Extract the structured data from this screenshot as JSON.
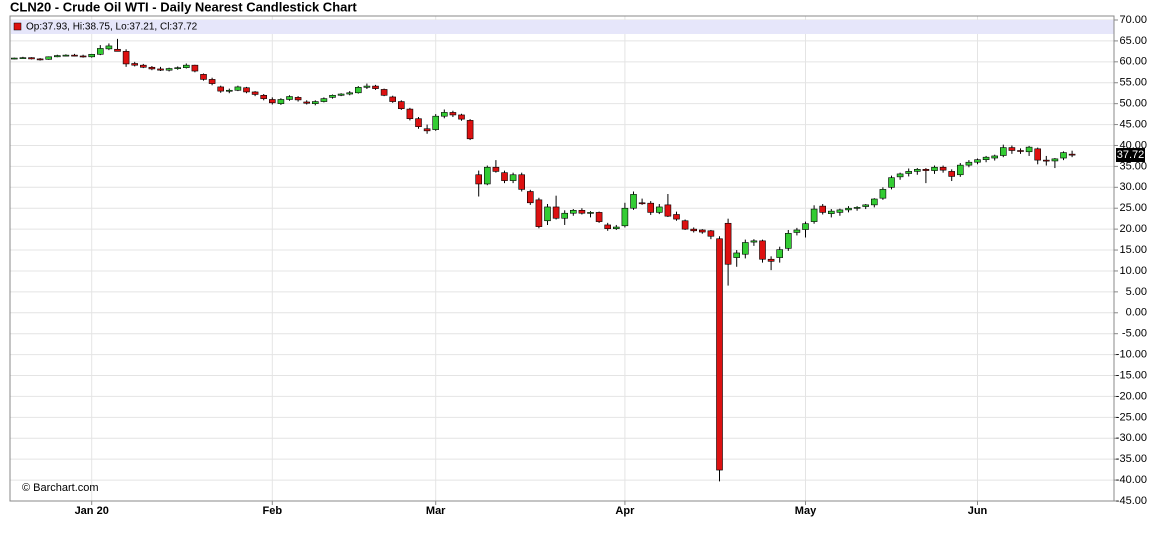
{
  "chart_data": {
    "type": "candlestick",
    "title": "CLN20 - Crude Oil WTI - Daily Nearest Candlestick Chart",
    "legend_text": "Op:37.93, Hi:38.75, Lo:37.21, Cl:37.72",
    "last_label": "37.72",
    "credit": "© Barchart.com",
    "up_color": "#33cc33",
    "down_color": "#dd1111",
    "grid": true,
    "ylim": [
      -45,
      70
    ],
    "yticks": [
      {
        "value": 70,
        "label": "70.00"
      },
      {
        "value": 65,
        "label": "65.00"
      },
      {
        "value": 60,
        "label": "60.00"
      },
      {
        "value": 55,
        "label": "55.00"
      },
      {
        "value": 50,
        "label": "50.00"
      },
      {
        "value": 45,
        "label": "45.00"
      },
      {
        "value": 40,
        "label": "40.00"
      },
      {
        "value": 35,
        "label": "35.00"
      },
      {
        "value": 30,
        "label": "30.00"
      },
      {
        "value": 25,
        "label": "25.00"
      },
      {
        "value": 20,
        "label": "20.00"
      },
      {
        "value": 15,
        "label": "15.00"
      },
      {
        "value": 10,
        "label": "10.00"
      },
      {
        "value": 5,
        "label": "5.00"
      },
      {
        "value": 0,
        "label": "0.00"
      },
      {
        "value": -5,
        "label": "-5.00"
      },
      {
        "value": -10,
        "label": "-10.00"
      },
      {
        "value": -15,
        "label": "-15.00"
      },
      {
        "value": -20,
        "label": "-20.00"
      },
      {
        "value": -25,
        "label": "-25.00"
      },
      {
        "value": -30,
        "label": "-30.00"
      },
      {
        "value": -35,
        "label": "-35.00"
      },
      {
        "value": -40,
        "label": "-40.00"
      },
      {
        "value": -45,
        "label": "-45.00"
      }
    ],
    "categories": [
      null,
      null,
      null,
      null,
      null,
      null,
      null,
      null,
      null,
      "Jan 20",
      null,
      null,
      null,
      null,
      null,
      null,
      null,
      null,
      null,
      null,
      null,
      null,
      null,
      null,
      null,
      null,
      null,
      null,
      null,
      null,
      "Feb",
      null,
      null,
      null,
      null,
      null,
      null,
      null,
      null,
      null,
      null,
      null,
      null,
      null,
      null,
      null,
      null,
      null,
      null,
      "Mar",
      null,
      null,
      null,
      null,
      null,
      null,
      null,
      null,
      null,
      null,
      null,
      null,
      null,
      null,
      null,
      null,
      null,
      null,
      null,
      null,
      null,
      "Apr",
      null,
      null,
      null,
      null,
      null,
      null,
      null,
      null,
      null,
      null,
      null,
      null,
      null,
      null,
      null,
      null,
      null,
      null,
      null,
      null,
      "May",
      null,
      null,
      null,
      null,
      null,
      null,
      null,
      null,
      null,
      null,
      null,
      null,
      null,
      null,
      null,
      null,
      null,
      null,
      null,
      "Jun",
      null,
      null,
      null,
      null,
      null,
      null,
      null,
      null,
      null,
      null,
      null
    ],
    "open": [
      60.8,
      60.9,
      61.0,
      60.7,
      60.6,
      61.2,
      61.5,
      61.6,
      61.4,
      61.2,
      61.8,
      63.1,
      63.0,
      62.5,
      59.6,
      59.2,
      58.7,
      58.3,
      58.0,
      58.4,
      58.6,
      59.2,
      57.0,
      55.8,
      54.0,
      53.0,
      53.2,
      53.8,
      52.8,
      52.0,
      51.0,
      50.0,
      51.0,
      51.5,
      50.4,
      50.0,
      50.5,
      51.5,
      52.0,
      52.3,
      52.6,
      53.9,
      54.2,
      53.4,
      51.6,
      50.5,
      48.7,
      46.4,
      44.0,
      43.8,
      47.0,
      47.9,
      47.3,
      46.0,
      33.0,
      30.8,
      34.8,
      33.5,
      31.6,
      33.0,
      29.0,
      27.0,
      22.0,
      25.3,
      22.6,
      23.8,
      24.5,
      23.8,
      24.0,
      21.0,
      20.1,
      20.8,
      25.0,
      26.3,
      26.2,
      24.0,
      25.8,
      23.5,
      22.0,
      20.0,
      19.8,
      19.6,
      17.7,
      21.4,
      13.2,
      14.0,
      16.9,
      17.2,
      12.8,
      13.2,
      15.4,
      19.2,
      19.9,
      21.8,
      25.5,
      23.7,
      24.0,
      24.6,
      25.0,
      25.4,
      25.8,
      27.4,
      30.0,
      32.5,
      33.3,
      33.8,
      34.3,
      34.0,
      34.8,
      33.8,
      33.0,
      35.3,
      36.0,
      36.6,
      37.0,
      37.6,
      39.5,
      38.8,
      38.5,
      39.2,
      36.5,
      36.3,
      37.0,
      37.93
    ],
    "high": [
      61.0,
      61.2,
      61.1,
      60.9,
      61.3,
      61.7,
      61.8,
      61.9,
      61.7,
      61.9,
      64.0,
      64.4,
      65.5,
      63.0,
      60.0,
      59.5,
      59.0,
      58.8,
      58.6,
      58.9,
      59.6,
      59.3,
      57.2,
      56.2,
      54.3,
      53.6,
      54.3,
      54.0,
      53.0,
      52.3,
      51.5,
      51.3,
      52.0,
      51.8,
      50.8,
      50.8,
      51.5,
      52.2,
      52.5,
      53.0,
      54.2,
      54.8,
      54.5,
      53.6,
      51.9,
      50.8,
      49.0,
      46.8,
      45.0,
      47.5,
      48.6,
      48.3,
      47.6,
      46.3,
      34.0,
      35.2,
      36.5,
      34.0,
      33.5,
      33.5,
      29.4,
      27.5,
      26.0,
      28.0,
      24.5,
      24.8,
      25.0,
      24.3,
      24.2,
      21.5,
      21.0,
      26.3,
      29.0,
      27.3,
      26.7,
      26.0,
      28.4,
      24.2,
      22.3,
      20.4,
      20.0,
      19.8,
      18.3,
      22.5,
      15.0,
      17.5,
      17.6,
      17.5,
      13.5,
      15.8,
      19.8,
      20.3,
      21.8,
      25.7,
      26.0,
      24.8,
      24.9,
      25.5,
      25.5,
      26.0,
      27.4,
      30.0,
      32.8,
      33.5,
      34.5,
      34.6,
      34.6,
      35.2,
      35.2,
      34.3,
      35.8,
      36.5,
      36.9,
      37.5,
      37.8,
      40.2,
      40.0,
      39.3,
      39.9,
      39.5,
      37.5,
      37.0,
      38.6,
      38.75
    ],
    "low": [
      60.6,
      60.8,
      60.6,
      60.3,
      60.5,
      61.1,
      61.3,
      61.3,
      61.0,
      61.0,
      61.6,
      62.8,
      62.5,
      58.8,
      58.9,
      58.5,
      58.0,
      57.8,
      57.7,
      58.1,
      58.4,
      57.5,
      55.5,
      54.4,
      52.6,
      52.5,
      53.0,
      52.5,
      51.8,
      50.8,
      49.8,
      49.7,
      50.7,
      50.5,
      49.8,
      49.6,
      50.3,
      51.2,
      51.8,
      52.0,
      52.4,
      53.5,
      53.3,
      51.8,
      50.2,
      48.5,
      46.0,
      44.0,
      42.8,
      43.5,
      46.5,
      46.8,
      45.9,
      41.3,
      27.8,
      30.5,
      33.5,
      31.0,
      31.0,
      29.0,
      25.8,
      20.2,
      21.0,
      22.3,
      21.0,
      23.2,
      23.5,
      22.8,
      21.5,
      19.6,
      19.8,
      20.4,
      24.6,
      25.8,
      23.4,
      23.6,
      22.9,
      22.0,
      19.8,
      19.2,
      18.9,
      17.6,
      -40.3,
      6.5,
      11.0,
      13.0,
      16.0,
      12.0,
      10.2,
      12.0,
      14.8,
      18.5,
      18.0,
      21.3,
      23.5,
      22.8,
      23.2,
      24.0,
      24.4,
      24.8,
      25.2,
      27.0,
      29.5,
      31.8,
      32.6,
      33.0,
      31.0,
      33.2,
      33.5,
      31.5,
      32.5,
      34.8,
      35.5,
      36.0,
      36.4,
      37.2,
      38.0,
      38.0,
      37.5,
      35.5,
      35.2,
      34.6,
      36.5,
      37.21
    ],
    "close": [
      60.9,
      61.0,
      60.7,
      60.5,
      61.2,
      61.5,
      61.6,
      61.5,
      61.2,
      61.8,
      63.2,
      63.8,
      62.5,
      59.5,
      59.2,
      58.7,
      58.3,
      58.0,
      58.4,
      58.6,
      59.2,
      57.8,
      55.8,
      54.8,
      53.0,
      53.2,
      54.0,
      52.8,
      52.2,
      51.2,
      50.2,
      51.0,
      51.7,
      50.9,
      50.1,
      50.5,
      51.2,
      52.0,
      52.3,
      52.6,
      53.9,
      54.2,
      53.6,
      52.0,
      50.5,
      48.8,
      46.4,
      44.5,
      43.5,
      47.0,
      47.9,
      47.3,
      46.3,
      41.6,
      30.8,
      34.8,
      33.8,
      31.6,
      33.0,
      29.5,
      26.3,
      20.6,
      25.3,
      22.6,
      23.8,
      24.5,
      23.8,
      24.0,
      21.8,
      20.1,
      20.5,
      25.0,
      28.3,
      26.1,
      24.0,
      25.3,
      23.1,
      22.4,
      20.0,
      19.6,
      19.3,
      18.3,
      -37.6,
      11.6,
      14.3,
      16.8,
      17.2,
      12.8,
      12.3,
      15.1,
      19.0,
      19.8,
      21.3,
      24.8,
      24.0,
      24.3,
      24.6,
      25.0,
      25.2,
      25.8,
      27.2,
      29.5,
      32.3,
      33.2,
      33.8,
      34.3,
      34.0,
      34.8,
      34.1,
      32.6,
      35.3,
      36.0,
      36.6,
      37.2,
      37.5,
      39.5,
      38.8,
      38.6,
      39.6,
      36.5,
      36.3,
      36.8,
      38.3,
      37.72
    ]
  }
}
